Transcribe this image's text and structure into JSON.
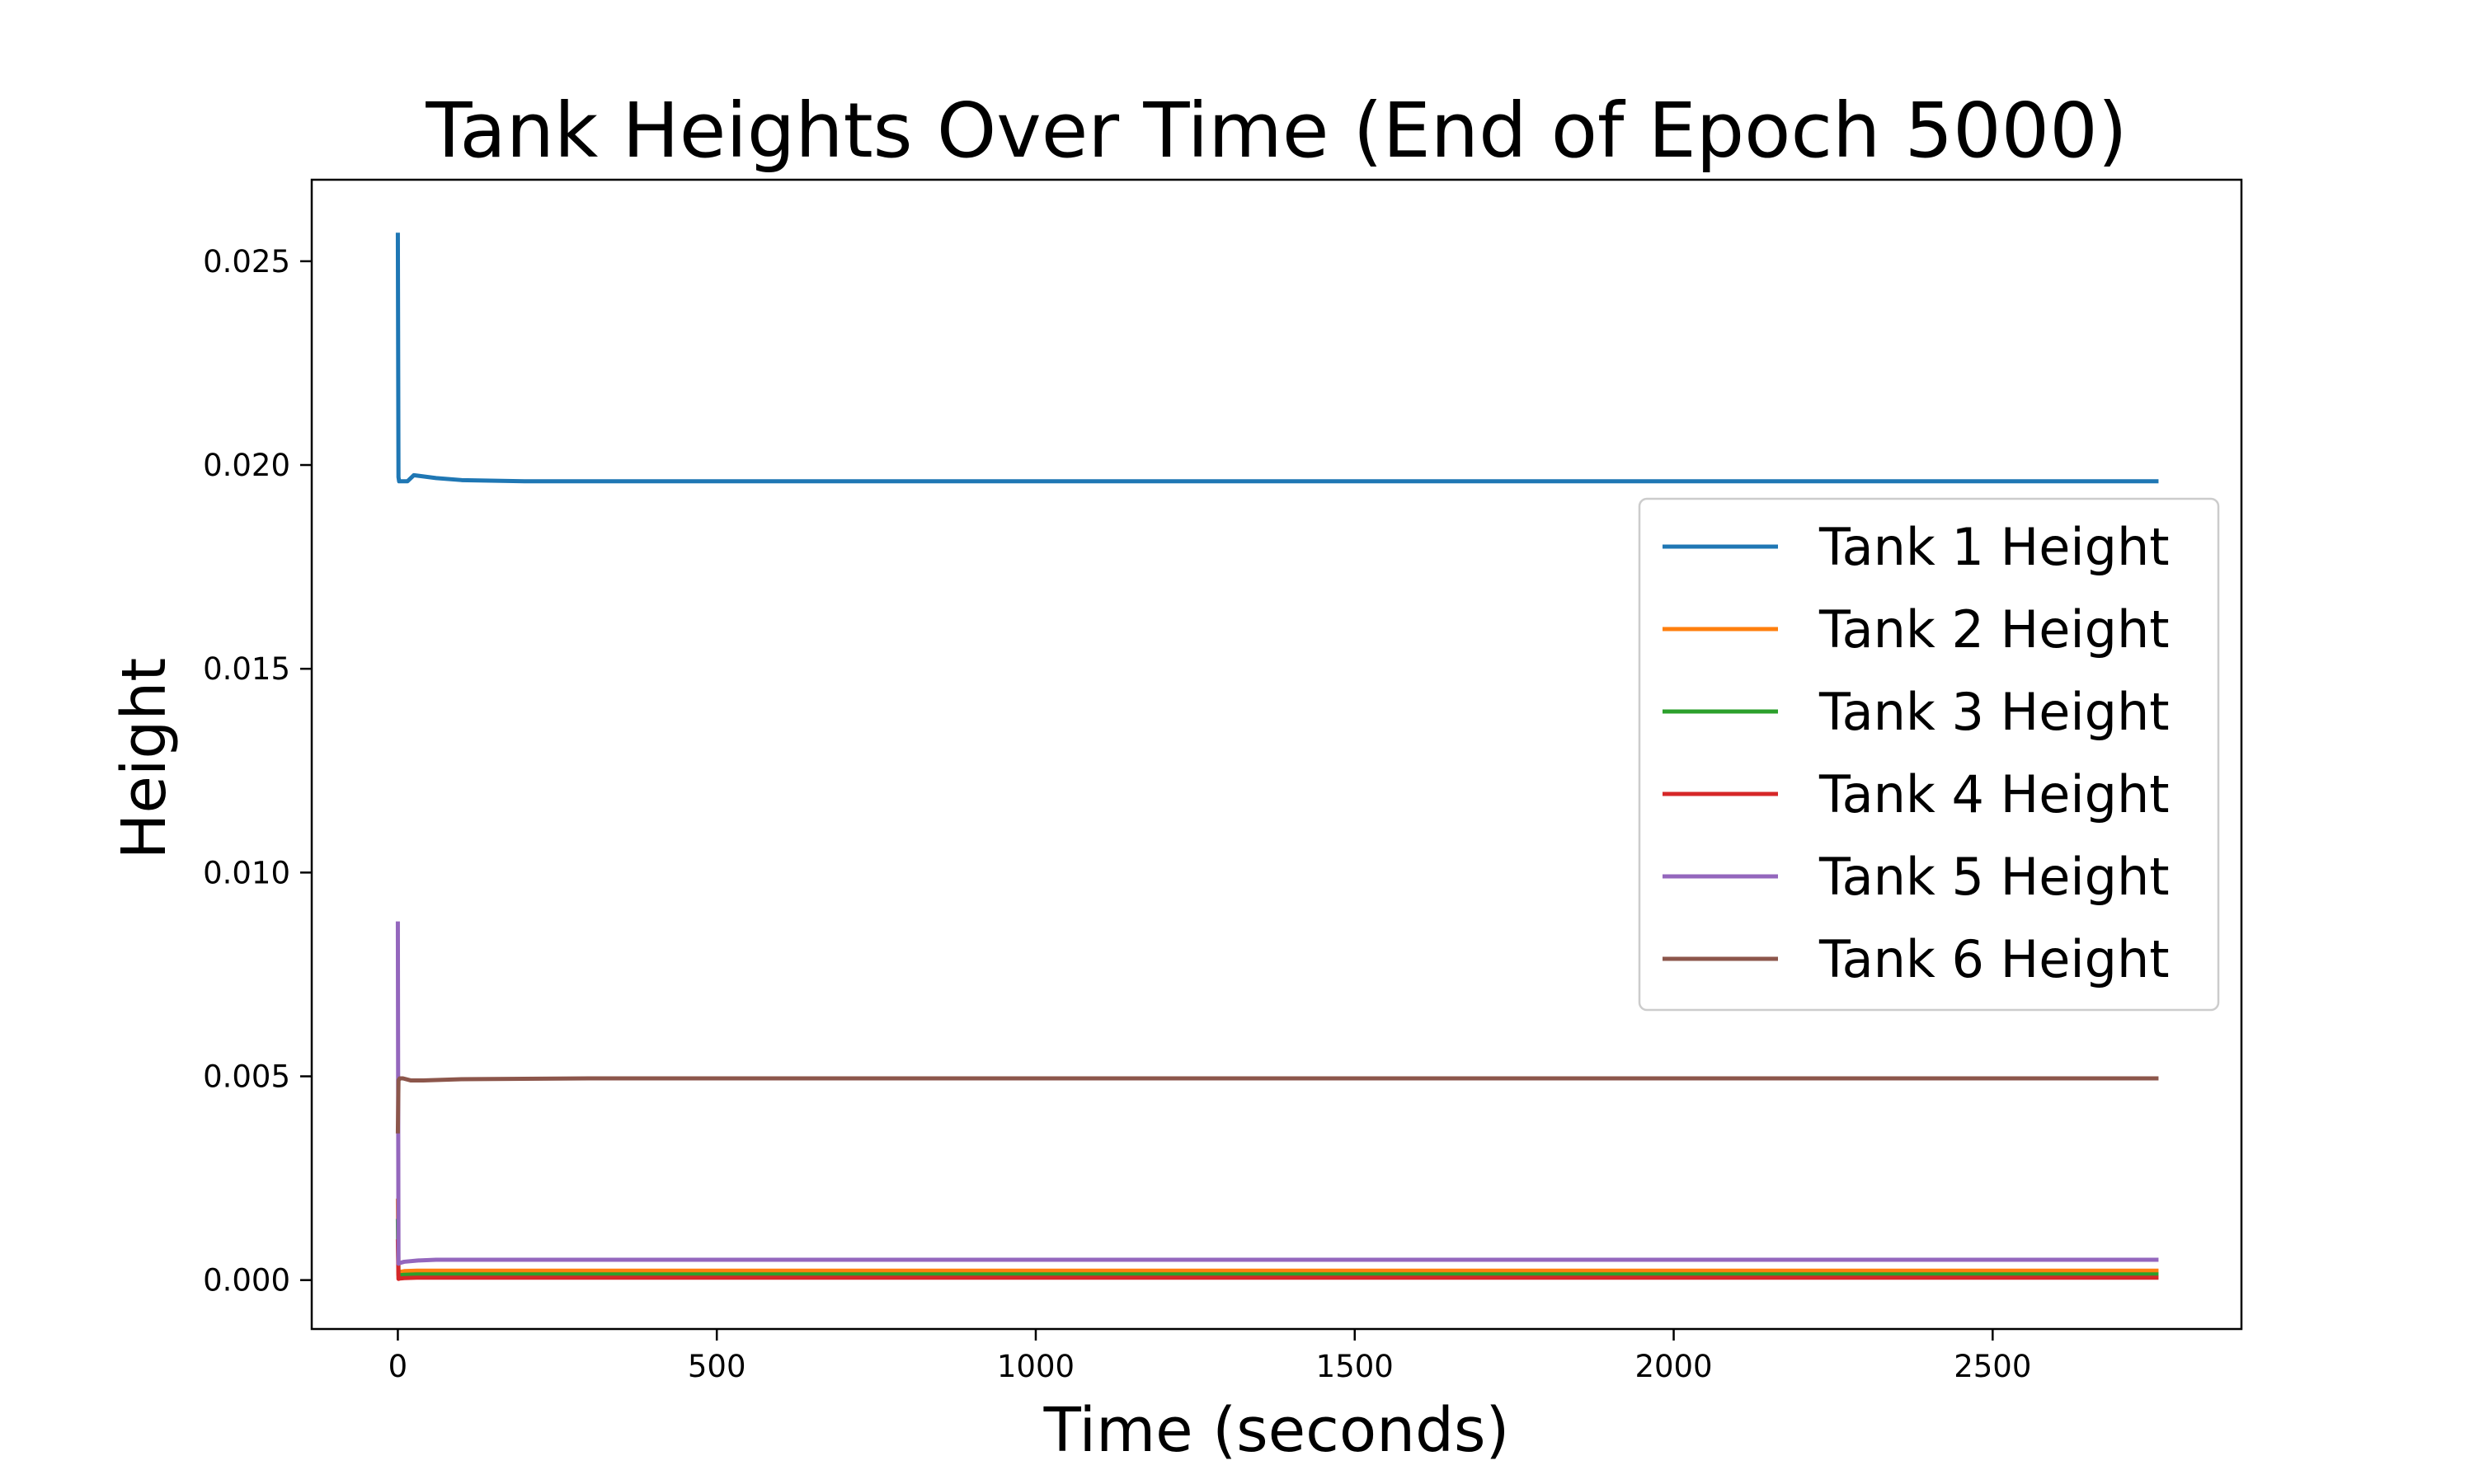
{
  "chart_data": {
    "type": "line",
    "title": "Tank Heights Over Time (End of Epoch 5000)",
    "xlabel": "Time (seconds)",
    "ylabel": "Height",
    "xlim": [
      -135,
      2890
    ],
    "ylim": [
      -0.0012,
      0.027
    ],
    "xticks": [
      0,
      500,
      1000,
      1500,
      2000,
      2500
    ],
    "xtick_labels": [
      "0",
      "500",
      "1000",
      "1500",
      "2000",
      "2500"
    ],
    "yticks": [
      0.0,
      0.005,
      0.01,
      0.015,
      0.02,
      0.025
    ],
    "ytick_labels": [
      "0.000",
      "0.005",
      "0.010",
      "0.015",
      "0.020",
      "0.025"
    ],
    "grid": false,
    "legend_position": "center-right",
    "series": [
      {
        "name": "Tank 1 Height",
        "color": "#1f77b4",
        "x": [
          0,
          1,
          2,
          8,
          15,
          25,
          40,
          60,
          100,
          200,
          400,
          800,
          1500,
          2000,
          2760
        ],
        "y": [
          0.0257,
          0.0197,
          0.0196,
          0.0196,
          0.0196,
          0.01975,
          0.01972,
          0.01968,
          0.01963,
          0.0196,
          0.0196,
          0.0196,
          0.0196,
          0.0196,
          0.0196
        ]
      },
      {
        "name": "Tank 2 Height",
        "color": "#ff7f0e",
        "x": [
          0,
          1,
          3,
          10,
          30,
          100,
          500,
          1500,
          2760
        ],
        "y": [
          0.002,
          0.0002,
          0.0002,
          0.00022,
          0.00023,
          0.00023,
          0.00023,
          0.00023,
          0.00023
        ]
      },
      {
        "name": "Tank 3 Height",
        "color": "#2ca02c",
        "x": [
          0,
          1,
          3,
          10,
          30,
          100,
          500,
          1500,
          2760
        ],
        "y": [
          0.0015,
          0.00012,
          0.00012,
          0.00013,
          0.00014,
          0.00014,
          0.00014,
          0.00014,
          0.00014
        ]
      },
      {
        "name": "Tank 4 Height",
        "color": "#d62728",
        "x": [
          0,
          1,
          3,
          10,
          30,
          100,
          500,
          1500,
          2760
        ],
        "y": [
          0.001,
          3e-05,
          4e-05,
          5e-05,
          6e-05,
          6e-05,
          6e-05,
          6e-05,
          6e-05
        ]
      },
      {
        "name": "Tank 5 Height",
        "color": "#9467bd",
        "x": [
          0,
          1,
          3,
          10,
          30,
          60,
          100,
          300,
          1000,
          2760
        ],
        "y": [
          0.0088,
          0.0004,
          0.00042,
          0.00045,
          0.00048,
          0.0005,
          0.0005,
          0.0005,
          0.0005,
          0.0005
        ]
      },
      {
        "name": "Tank 6 Height",
        "color": "#8c564b",
        "x": [
          0,
          1,
          3,
          8,
          20,
          40,
          100,
          300,
          1000,
          2760
        ],
        "y": [
          0.0036,
          0.0049,
          0.00495,
          0.00495,
          0.0049,
          0.0049,
          0.00493,
          0.00495,
          0.00495,
          0.00495
        ]
      }
    ]
  }
}
